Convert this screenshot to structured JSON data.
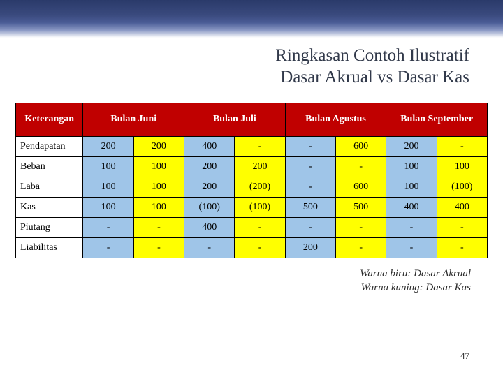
{
  "title_line1": "Ringkasan Contoh Ilustratif",
  "title_line2": "Dasar Akrual vs Dasar Kas",
  "headers": {
    "ket": "Keterangan",
    "m1": "Bulan Juni",
    "m2": "Bulan Juli",
    "m3": "Bulan Agustus",
    "m4": "Bulan September"
  },
  "rows": [
    {
      "label": "Pendapatan",
      "c": [
        "200",
        "200",
        "400",
        "-",
        "-",
        "600",
        "200",
        "-"
      ]
    },
    {
      "label": "Beban",
      "c": [
        "100",
        "100",
        "200",
        "200",
        "-",
        "-",
        "100",
        "100"
      ]
    },
    {
      "label": "Laba",
      "c": [
        "100",
        "100",
        "200",
        "(200)",
        "-",
        "600",
        "100",
        "(100)"
      ]
    },
    {
      "label": "Kas",
      "c": [
        "100",
        "100",
        "(100)",
        "(100)",
        "500",
        "500",
        "400",
        "400"
      ]
    },
    {
      "label": "Piutang",
      "c": [
        "-",
        "-",
        "400",
        "-",
        "-",
        "-",
        "-",
        "-"
      ]
    },
    {
      "label": "Liabilitas",
      "c": [
        "-",
        "-",
        "-",
        "-",
        "200",
        "-",
        "-",
        "-"
      ]
    }
  ],
  "legend_line1": "Warna biru: Dasar Akrual",
  "legend_line2": "Warna kuning:  Dasar Kas",
  "page_number": "47",
  "colors": {
    "header_bg": "#c00000",
    "blue": "#9fc5e8",
    "yellow": "#ffff00"
  }
}
